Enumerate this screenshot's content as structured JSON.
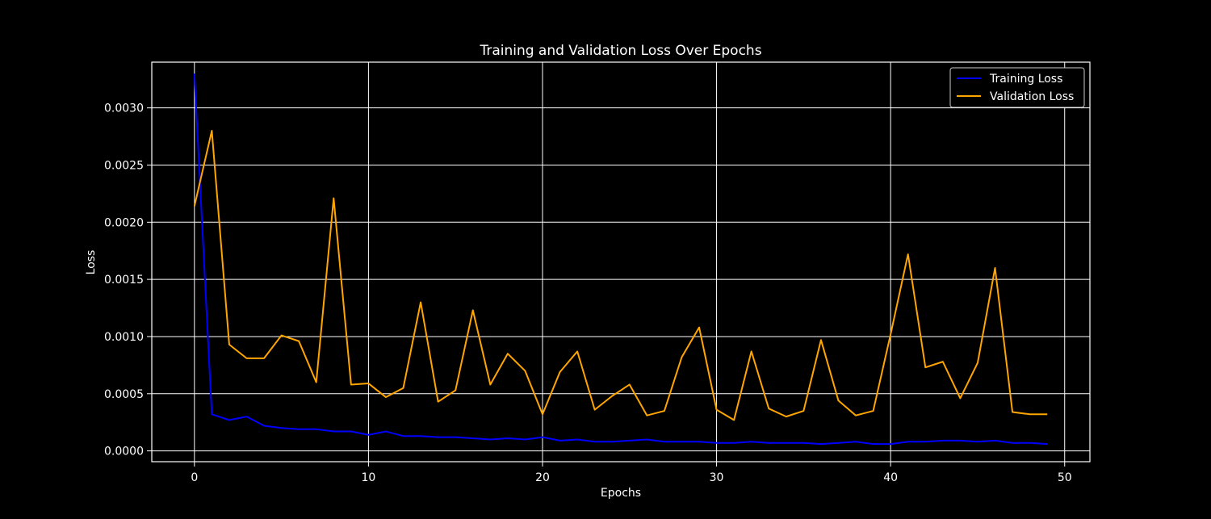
{
  "chart_data": {
    "type": "line",
    "title": "Training and Validation Loss Over Epochs",
    "xlabel": "Epochs",
    "ylabel": "Loss",
    "xlim": [
      -2.45,
      51.45
    ],
    "ylim": [
      -9.45e-05,
      0.0034
    ],
    "xticks": [
      0,
      10,
      20,
      30,
      40,
      50
    ],
    "xtick_labels": [
      "0",
      "10",
      "20",
      "30",
      "40",
      "50"
    ],
    "yticks": [
      0,
      0.0005,
      0.001,
      0.0015,
      0.002,
      0.0025,
      0.003
    ],
    "ytick_labels": [
      "0.0000",
      "0.0005",
      "0.0010",
      "0.0015",
      "0.0020",
      "0.0025",
      "0.0030"
    ],
    "grid": true,
    "legend_position": "top-right",
    "x": [
      0,
      1,
      2,
      3,
      4,
      5,
      6,
      7,
      8,
      9,
      10,
      11,
      12,
      13,
      14,
      15,
      16,
      17,
      18,
      19,
      20,
      21,
      22,
      23,
      24,
      25,
      26,
      27,
      28,
      29,
      30,
      31,
      32,
      33,
      34,
      35,
      36,
      37,
      38,
      39,
      40,
      41,
      42,
      43,
      44,
      45,
      46,
      47,
      48,
      49
    ],
    "series": [
      {
        "name": "Training Loss",
        "color": "#0000ff",
        "values": [
          0.0033,
          0.00032,
          0.00027,
          0.0003,
          0.00022,
          0.0002,
          0.00019,
          0.00019,
          0.00017,
          0.00017,
          0.00014,
          0.00017,
          0.00013,
          0.00013,
          0.00012,
          0.00012,
          0.00011,
          0.0001,
          0.00011,
          0.0001,
          0.00012,
          9e-05,
          0.0001,
          8e-05,
          8e-05,
          9e-05,
          0.0001,
          8e-05,
          8e-05,
          8e-05,
          7e-05,
          7e-05,
          8e-05,
          7e-05,
          7e-05,
          7e-05,
          6e-05,
          7e-05,
          8e-05,
          6e-05,
          6e-05,
          8e-05,
          8e-05,
          9e-05,
          9e-05,
          8e-05,
          9e-05,
          7e-05,
          7e-05,
          6e-05
        ]
      },
      {
        "name": "Validation Loss",
        "color": "#ffa500",
        "values": [
          0.00214,
          0.0028,
          0.00093,
          0.00081,
          0.00081,
          0.00101,
          0.00096,
          0.0006,
          0.00221,
          0.00058,
          0.00059,
          0.00047,
          0.00055,
          0.0013,
          0.00043,
          0.00053,
          0.00123,
          0.00058,
          0.00085,
          0.0007,
          0.00032,
          0.00069,
          0.00087,
          0.00036,
          0.00048,
          0.00058,
          0.00031,
          0.00035,
          0.00082,
          0.00108,
          0.00036,
          0.00027,
          0.00087,
          0.00037,
          0.0003,
          0.00035,
          0.00097,
          0.00044,
          0.00031,
          0.00035,
          0.00102,
          0.00172,
          0.00073,
          0.00078,
          0.00046,
          0.00077,
          0.0016,
          0.00034,
          0.00032,
          0.00032
        ]
      }
    ]
  }
}
